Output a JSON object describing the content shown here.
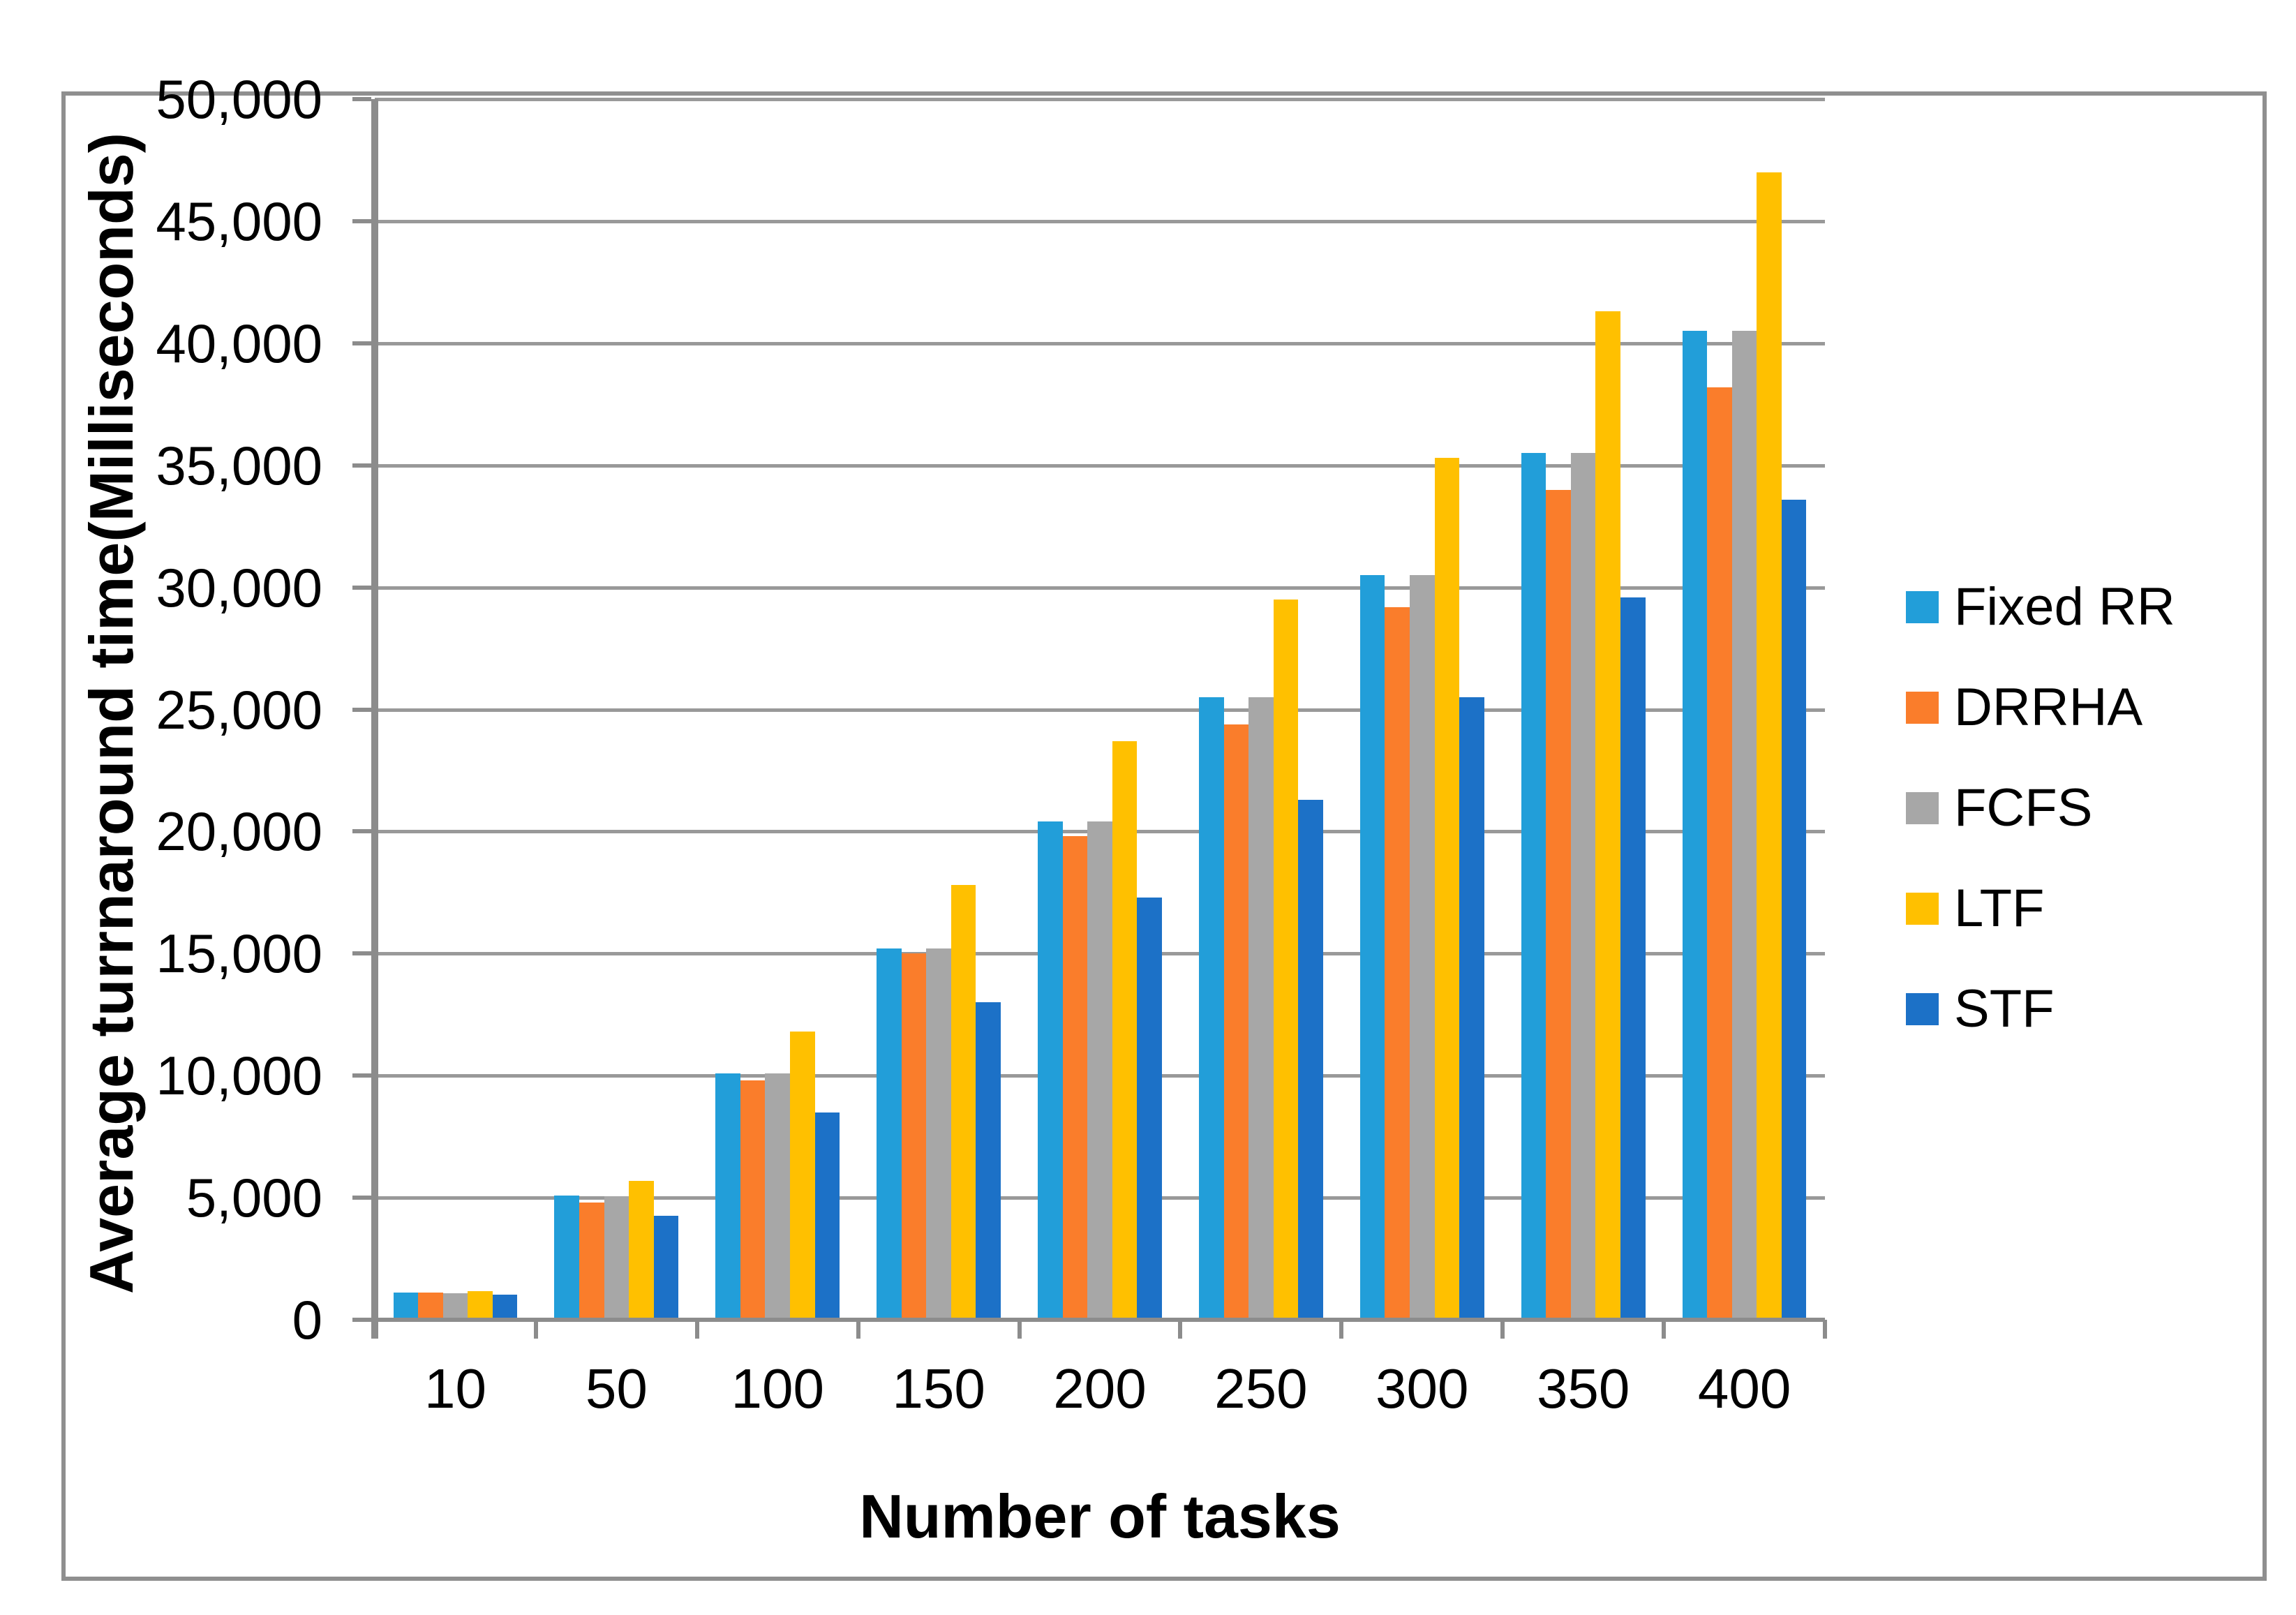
{
  "figure": {
    "background": "#FFFFFF",
    "frame_color": "#8F8F8F",
    "axis_color": "#8C8C8C",
    "grid_color": "#999999"
  },
  "chart_data": {
    "type": "bar",
    "title": "",
    "xlabel": "Number of tasks",
    "ylabel": "Average turrnaround time(Milliseconds)",
    "categories": [
      "10",
      "50",
      "100",
      "150",
      "200",
      "250",
      "300",
      "350",
      "400"
    ],
    "series": [
      {
        "name": "Fixed RR",
        "color": "#229ED9",
        "values": [
          1120,
          5100,
          10100,
          15200,
          20400,
          25500,
          30500,
          35500,
          40500
        ]
      },
      {
        "name": "DRRHA",
        "color": "#FA7D2B",
        "values": [
          1120,
          4800,
          9800,
          15000,
          19800,
          24400,
          29200,
          34000,
          38200
        ]
      },
      {
        "name": "FCFS",
        "color": "#A7A7A7",
        "values": [
          1090,
          5050,
          10100,
          15200,
          20400,
          25500,
          30500,
          35500,
          40500
        ]
      },
      {
        "name": "LTF",
        "color": "#FFC000",
        "values": [
          1180,
          5700,
          11800,
          17800,
          23700,
          29500,
          35300,
          41300,
          47000
        ]
      },
      {
        "name": "STF",
        "color": "#1C71C7",
        "values": [
          1040,
          4250,
          8500,
          13000,
          17300,
          21300,
          25500,
          29600,
          33600
        ]
      }
    ],
    "ylim": [
      0,
      50000
    ],
    "y_step": 5000,
    "y_tick_labels": [
      "0",
      "5,000",
      "10,000",
      "15,000",
      "20,000",
      "25,000",
      "30,000",
      "35,000",
      "40,000",
      "45,000",
      "50,000"
    ],
    "grid": "horizontal",
    "legend_position": "right"
  }
}
